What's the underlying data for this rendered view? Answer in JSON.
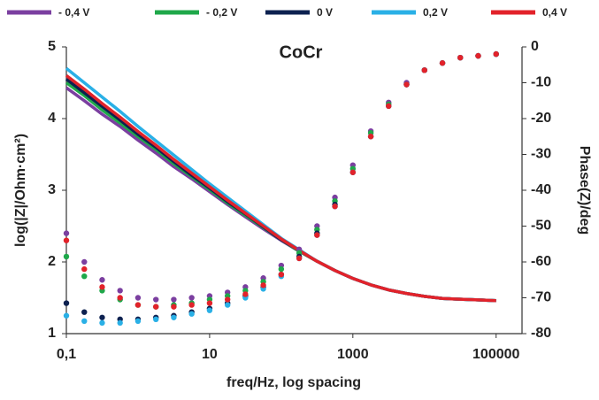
{
  "chart_data": {
    "type": "bode",
    "title": "CoCr",
    "x_label": "freq/Hz, log spacing",
    "y_label": "log(|Z|/Ohm·cm²)",
    "y2_label": "Phase(Z)/deg",
    "xscale": "log",
    "xlim": [
      0.1,
      230000
    ],
    "xticks": [
      {
        "value": 0.1,
        "label": "0,1"
      },
      10,
      1000,
      100000
    ],
    "ylim": [
      1,
      5
    ],
    "yticks": [
      1,
      2,
      3,
      4,
      5
    ],
    "y2lim": [
      -80,
      0
    ],
    "y2ticks": [
      0,
      -10,
      -20,
      -30,
      -40,
      -50,
      -60,
      -70,
      -80
    ],
    "x": [
      0.1,
      0.178,
      0.316,
      0.562,
      1,
      1.78,
      3.16,
      5.62,
      10,
      17.8,
      31.6,
      56.2,
      100,
      178,
      316,
      562,
      1000,
      1780,
      3160,
      5620,
      10000,
      17800,
      31600,
      56200,
      100000
    ],
    "series": [
      {
        "name": "- 0,4 V",
        "color": "#7b3fa0",
        "values": [
          4.43,
          4.25,
          4.06,
          3.89,
          3.7,
          3.52,
          3.33,
          3.16,
          2.98,
          2.8,
          2.63,
          2.46,
          2.3,
          2.15,
          2.01,
          1.88,
          1.77,
          1.68,
          1.61,
          1.56,
          1.52,
          1.49,
          1.48,
          1.47,
          1.46
        ]
      },
      {
        "name": "- 0,2 V",
        "color": "#1fa84a",
        "values": [
          4.5,
          4.32,
          4.12,
          3.94,
          3.75,
          3.57,
          3.37,
          3.19,
          3.01,
          2.82,
          2.65,
          2.48,
          2.31,
          2.15,
          2.01,
          1.88,
          1.77,
          1.68,
          1.61,
          1.56,
          1.52,
          1.49,
          1.48,
          1.47,
          1.46
        ]
      },
      {
        "name": "0 V",
        "color": "#0d2150",
        "values": [
          4.55,
          4.36,
          4.17,
          3.98,
          3.78,
          3.6,
          3.4,
          3.21,
          3.03,
          2.84,
          2.67,
          2.49,
          2.31,
          2.16,
          2.01,
          1.88,
          1.77,
          1.68,
          1.61,
          1.56,
          1.52,
          1.49,
          1.48,
          1.47,
          1.46
        ]
      },
      {
        "name": "0,2 V",
        "color": "#2ab0e6",
        "values": [
          4.7,
          4.5,
          4.3,
          4.1,
          3.89,
          3.69,
          3.49,
          3.29,
          3.09,
          2.9,
          2.71,
          2.52,
          2.33,
          2.17,
          2.01,
          1.88,
          1.77,
          1.68,
          1.61,
          1.56,
          1.52,
          1.49,
          1.48,
          1.47,
          1.46
        ]
      },
      {
        "name": "0,4 V",
        "color": "#e2222a",
        "values": [
          4.6,
          4.41,
          4.21,
          4.02,
          3.82,
          3.63,
          3.43,
          3.24,
          3.05,
          2.86,
          2.68,
          2.5,
          2.32,
          2.16,
          2.01,
          1.88,
          1.77,
          1.68,
          1.61,
          1.56,
          1.52,
          1.49,
          1.48,
          1.47,
          1.46
        ]
      }
    ],
    "phase_series": [
      {
        "axis": "y2",
        "color": "#7b3fa0",
        "values": [
          -52,
          -60,
          -65,
          -68,
          -70,
          -70.5,
          -70.5,
          -70,
          -69.5,
          -68.5,
          -67,
          -64.5,
          -61,
          -56.5,
          -50,
          -42,
          -33,
          -23.5,
          -15.5,
          -10,
          -6.5,
          -4.5,
          -3,
          -2.5,
          -2
        ]
      },
      {
        "axis": "y2",
        "color": "#1fa84a",
        "values": [
          -58.5,
          -64,
          -68,
          -70.5,
          -72,
          -72.5,
          -72,
          -71.5,
          -70.5,
          -69.5,
          -68,
          -65.5,
          -62,
          -57.5,
          -51,
          -43,
          -34,
          -24,
          -16,
          -10.5,
          -6.5,
          -4.5,
          -3,
          -2.5,
          -2
        ]
      },
      {
        "axis": "y2",
        "color": "#0d2150",
        "values": [
          -71.5,
          -74,
          -75.5,
          -76,
          -76,
          -75.5,
          -75,
          -74,
          -73,
          -71.5,
          -69.5,
          -67,
          -63.5,
          -58.5,
          -52,
          -44,
          -35,
          -25,
          -16.5,
          -10.5,
          -6.5,
          -4.5,
          -3,
          -2.5,
          -2
        ]
      },
      {
        "axis": "y2",
        "color": "#2ab0e6",
        "values": [
          -75,
          -76.5,
          -77,
          -77,
          -76.5,
          -76,
          -75.5,
          -74.5,
          -73.5,
          -72,
          -70,
          -67.5,
          -64,
          -59,
          -52.5,
          -44.5,
          -35,
          -25,
          -16.5,
          -10.5,
          -6.5,
          -4.5,
          -3,
          -2.5,
          -2
        ]
      },
      {
        "axis": "y2",
        "color": "#e2222a",
        "values": [
          -54,
          -62,
          -67,
          -70,
          -72,
          -72.5,
          -72.5,
          -72,
          -71.5,
          -70.5,
          -69,
          -66.5,
          -63.5,
          -59,
          -52.5,
          -44.5,
          -35,
          -25,
          -16.5,
          -10.5,
          -6.5,
          -4.5,
          -3,
          -2.5,
          -2
        ]
      }
    ]
  }
}
